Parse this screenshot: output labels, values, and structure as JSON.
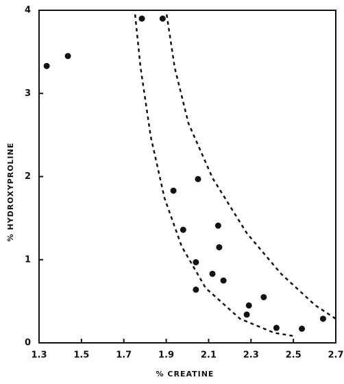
{
  "chart_data": {
    "type": "scatter",
    "x_label": "% CREATINE",
    "y_label": "% HYDROXYPROLINE",
    "x": [
      1.336,
      1.436,
      1.785,
      1.883,
      1.934,
      2.05,
      1.98,
      2.04,
      2.145,
      2.15,
      2.118,
      2.17,
      2.04,
      2.29,
      2.28,
      2.36,
      2.42,
      2.54,
      2.64
    ],
    "values": [
      3.33,
      3.45,
      3.9,
      3.9,
      1.83,
      1.97,
      1.36,
      0.97,
      1.41,
      1.15,
      0.83,
      0.75,
      0.64,
      0.45,
      0.34,
      0.55,
      0.18,
      0.17,
      0.29
    ],
    "color": "#111111",
    "curves": [
      {
        "x": [
          1.753,
          1.779,
          1.827,
          1.892,
          1.973,
          2.086,
          2.248,
          2.41,
          2.507
        ],
        "values": [
          3.95,
          3.31,
          2.48,
          1.74,
          1.16,
          0.66,
          0.29,
          0.12,
          0.08
        ]
      },
      {
        "x": [
          1.902,
          1.94,
          2.005,
          2.119,
          2.28,
          2.442,
          2.604,
          2.7
        ],
        "values": [
          3.95,
          3.31,
          2.64,
          1.98,
          1.32,
          0.83,
          0.45,
          0.29
        ]
      }
    ],
    "xlim": [
      1.3,
      2.7
    ],
    "xticks": [
      1.3,
      1.5,
      1.7,
      1.9,
      2.1,
      2.3,
      2.5,
      2.7
    ],
    "ylim": [
      0,
      4
    ],
    "yticks": [
      0,
      1,
      2,
      3,
      4
    ]
  }
}
